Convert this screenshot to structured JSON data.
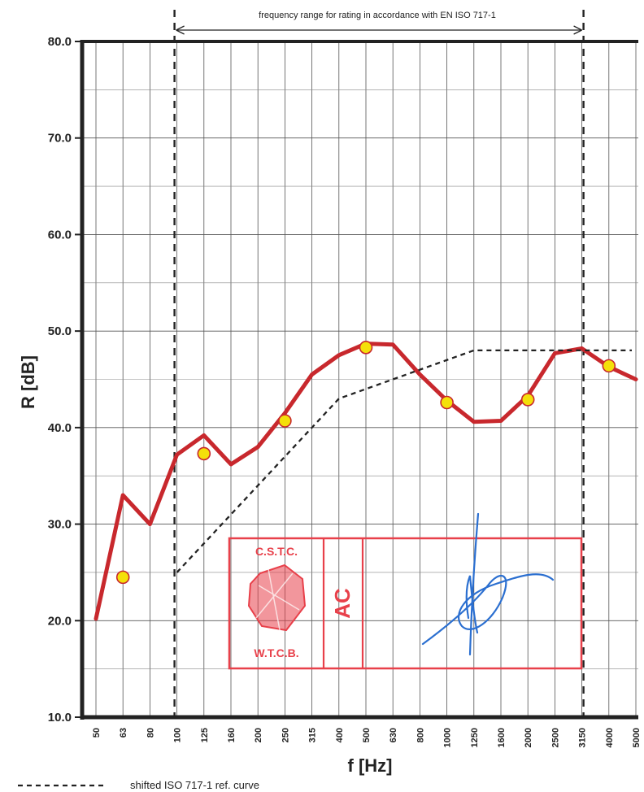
{
  "chart_data": {
    "type": "line",
    "xlabel": "f [Hz]",
    "ylabel": "R [dB]",
    "ylim": [
      10,
      80
    ],
    "yticks": [
      "10.0",
      "20.0",
      "30.0",
      "40.0",
      "50.0",
      "60.0",
      "70.0",
      "80.0"
    ],
    "categories": [
      "50",
      "63",
      "80",
      "100",
      "125",
      "160",
      "200",
      "250",
      "315",
      "400",
      "500",
      "630",
      "800",
      "1000",
      "1250",
      "1600",
      "2000",
      "2500",
      "3150",
      "4000",
      "5000"
    ],
    "grid": true,
    "annotation": "frequency range for rating in accordance with EN ISO 717-1",
    "rating_range": [
      "100",
      "3150"
    ],
    "series": [
      {
        "key": "measured",
        "color": "#c8282d",
        "values": [
          20.2,
          33.0,
          30.0,
          37.2,
          39.2,
          36.2,
          38.0,
          41.5,
          45.5,
          47.5,
          48.7,
          48.6,
          45.5,
          42.8,
          40.6,
          40.7,
          43.3,
          47.7,
          48.2,
          46.3,
          45.0
        ]
      },
      {
        "key": "points",
        "color": "#f4e00a",
        "x": [
          "63",
          "125",
          "250",
          "500",
          "1000",
          "2000",
          "4000"
        ],
        "values": [
          24.5,
          37.3,
          40.7,
          48.3,
          42.6,
          42.9,
          46.4
        ]
      },
      {
        "name": "shifted ISO 717-1 ref. curve",
        "color": "#222222",
        "x": [
          "100",
          "125",
          "160",
          "200",
          "250",
          "315",
          "400",
          "500",
          "630",
          "800",
          "1000",
          "1250",
          "1600",
          "2000",
          "2500",
          "3150",
          "5000"
        ],
        "values": [
          25.0,
          28.0,
          31.0,
          34.0,
          37.0,
          40.0,
          43.0,
          44.0,
          45.0,
          46.0,
          47.0,
          48.0,
          48.0,
          48.0,
          48.0,
          48.0,
          48.0
        ]
      }
    ],
    "legend": [
      {
        "label": "shifted ISO 717-1 ref. curve"
      }
    ]
  },
  "stamp": {
    "top_text": "C.S.T.C.",
    "bottom_text": "W.T.C.B.",
    "middle_text": "AC",
    "color": "#e8404a"
  },
  "signature_color": "#2b6fd0"
}
